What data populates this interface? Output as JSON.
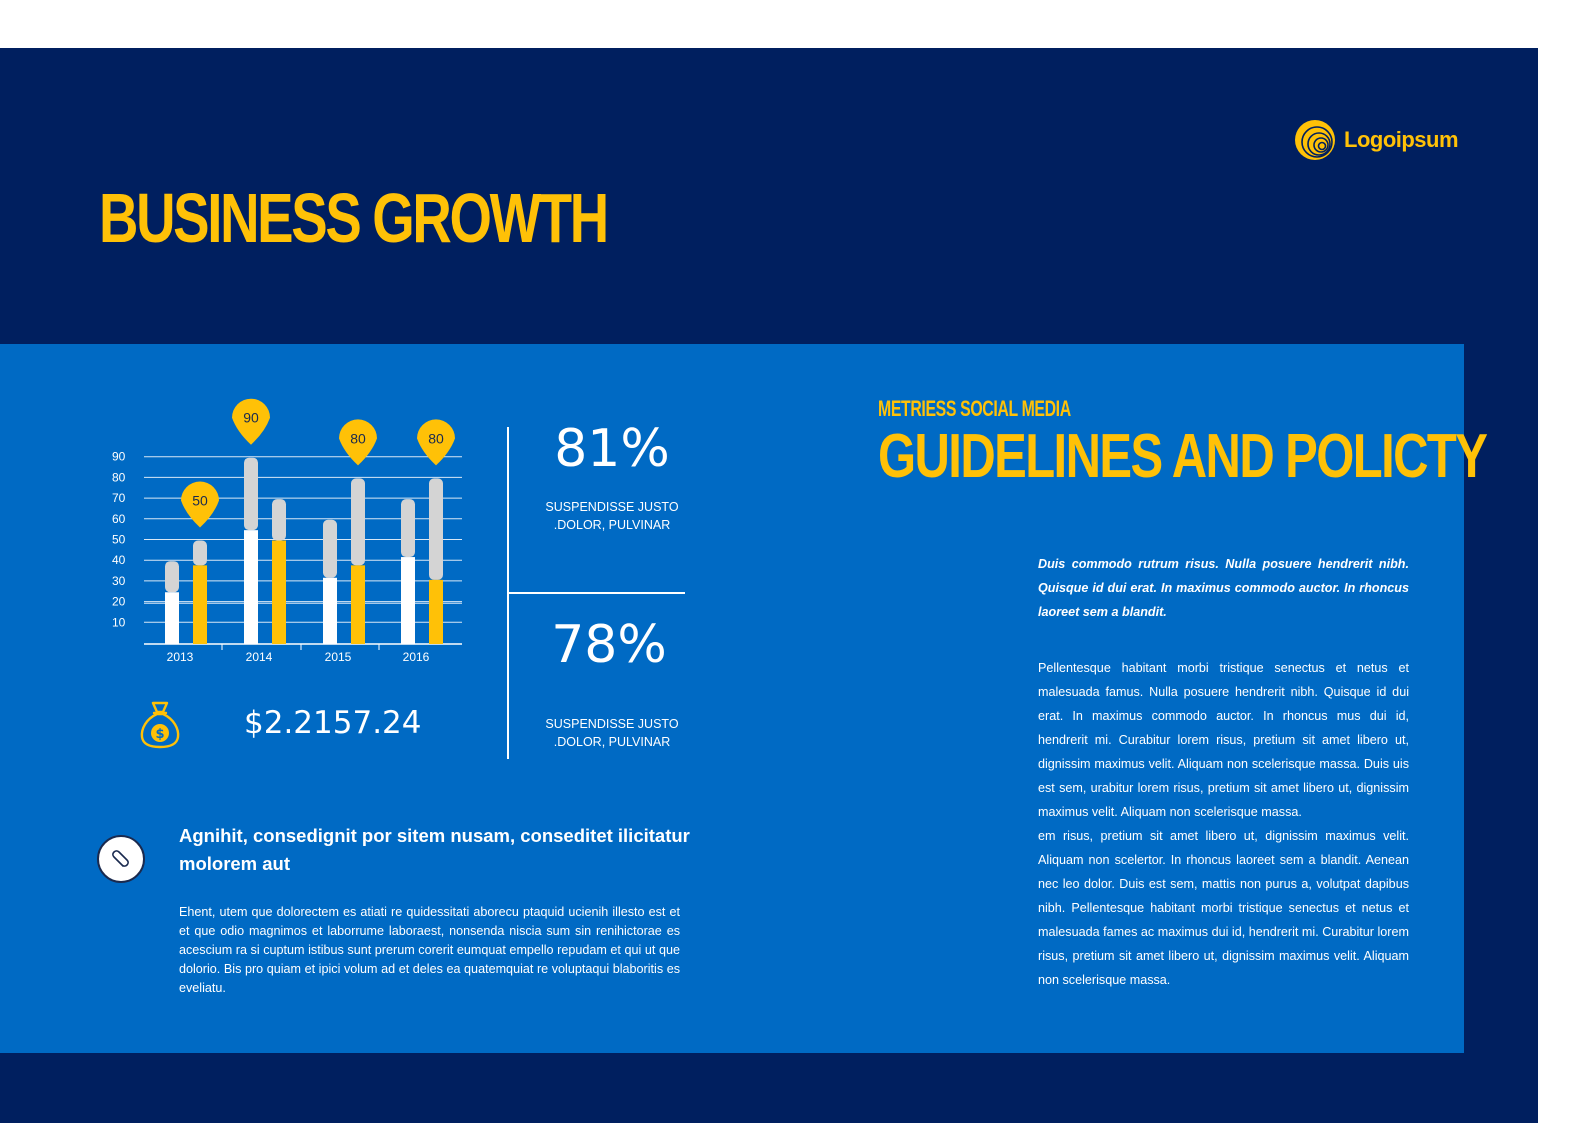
{
  "header": {
    "title": "BUSINESS GROWTH",
    "logo_text": "Logoipsum"
  },
  "chart_data": {
    "type": "bar",
    "categories": [
      "2013",
      "2014",
      "2015",
      "2016"
    ],
    "series": [
      {
        "color": "#ffffff",
        "values": [
          25,
          55,
          32,
          42
        ],
        "totals": [
          40,
          90,
          60,
          70
        ]
      },
      {
        "color": "#ffc107",
        "values": [
          38,
          50,
          38,
          31
        ],
        "totals": [
          50,
          70,
          80,
          80
        ]
      }
    ],
    "callouts": [
      {
        "category": "2013",
        "series": 1,
        "label": "50"
      },
      {
        "category": "2014",
        "series": 0,
        "label": "90"
      },
      {
        "category": "2015",
        "series": 1,
        "label": "80"
      },
      {
        "category": "2016",
        "series": 1,
        "label": "80"
      }
    ],
    "yticks": [
      "90",
      "80",
      "70",
      "60",
      "50",
      "40",
      "30",
      "20",
      "10"
    ],
    "ylim": [
      0,
      100
    ],
    "grid": true,
    "colors": {
      "remainder": "#d4d4d4",
      "callout": "#ffc107",
      "grid": "#ffffff"
    }
  },
  "stats": {
    "first": {
      "value": "81%",
      "description": "SUSPENDISSE  JUSTO\n.DOLOR,  PULVINAR"
    },
    "second": {
      "value": "78%",
      "description": "SUSPENDISSE  JUSTO\n.DOLOR,  PULVINAR"
    }
  },
  "money": {
    "icon": "money-bag-icon",
    "value": "$2.2157.24"
  },
  "note": {
    "icon": "paperclip-icon",
    "heading": "Agnihit, consedignit por sitem nusam, conseditet ilicitatur molorem aut",
    "body": "Ehent, utem que dolorectem es atiati re quidessitati aborecu ptaquid ucienih illesto est et et que odio magnimos et laborrume laboraest, nonsenda niscia sum sin renihictorae es acescium ra si cuptum istibus sunt prerum corerit eumquat empello repudam et qui ut que dolorio. Bis pro quiam et ipici volum ad et deles ea quatemquiat re voluptaqui  blaboritis  es eveliatu."
  },
  "guidelines": {
    "kicker": "METRIESS SOCIAL MEDIA",
    "title": "GUIDELINES AND POLICTY",
    "intro": "Duis commodo rutrum risus. Nulla posuere hendrerit nibh. Quisque id dui erat. In maximus commodo auctor. In rhoncus laoreet sem a blandit.",
    "paragraph_1": "Pellentesque habitant morbi tristique senectus et netus et malesuada famus. Nulla posuere hendrerit nibh. Quisque id dui erat. In maximus commodo auctor. In rhoncus mus dui id, hendrerit mi. Curabitur lorem risus, pretium sit amet libero ut, dignissim maximus velit. Aliquam non scelerisque massa. Duis uis est sem, urabitur lorem risus, pretium sit amet libero ut, dignissim maximus velit. Aliquam non scelerisque massa.",
    "paragraph_2": "em risus, pretium sit amet libero ut, dignissim maximus velit. Aliquam non scelertor. In rhoncus laoreet sem a blandit. Aenean nec leo dolor. Duis est sem, mattis non purus a, volutpat dapibus nibh. Pellentesque habitant morbi tristique senectus et netus et malesuada fames ac maximus dui id, hendrerit mi. Curabitur lorem risus, pretium sit amet libero ut, dignissim maximus velit. Aliquam non scelerisque massa."
  },
  "colors": {
    "navy": "#001f5f",
    "blue": "#006ac4",
    "accent": "#ffc107"
  }
}
